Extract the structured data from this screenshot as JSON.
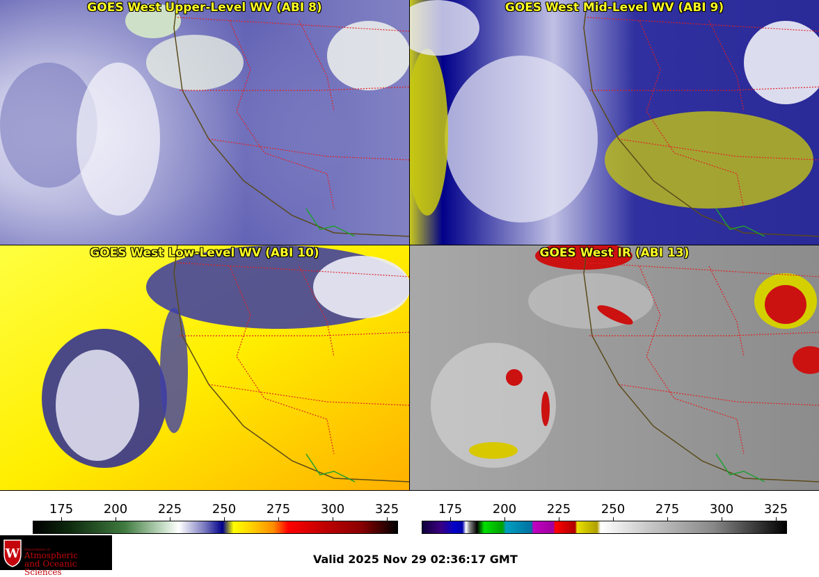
{
  "panels": [
    {
      "title": "GOES West Upper-Level WV (ABI 8)",
      "colormap": "wv"
    },
    {
      "title": "GOES West Mid-Level WV (ABI 9)",
      "colormap": "wv"
    },
    {
      "title": "GOES West Low-Level WV (ABI 10)",
      "colormap": "wv"
    },
    {
      "title": "GOES West IR (ABI 13)",
      "colormap": "ir"
    }
  ],
  "colorbars": [
    {
      "ticks": [
        "175",
        "200",
        "225",
        "250",
        "275",
        "300",
        "325"
      ],
      "gradient": [
        "#000000",
        "#0e2a0e",
        "#3f7a3f",
        "#c9e0c9",
        "#ffffff",
        "#7a7ac0",
        "#00008a",
        "#ffff00",
        "#ff8c00",
        "#ff0000",
        "#8b0000",
        "#000000"
      ]
    },
    {
      "ticks": [
        "175",
        "200",
        "225",
        "250",
        "275",
        "300",
        "325"
      ]
    }
  ],
  "valid_time": "Valid 2025 Nov 29 02:36:17 GMT",
  "logo": {
    "dept": "Department of",
    "line1": "Atmospheric",
    "line2": "and Oceanic Sciences",
    "mark": "W"
  }
}
